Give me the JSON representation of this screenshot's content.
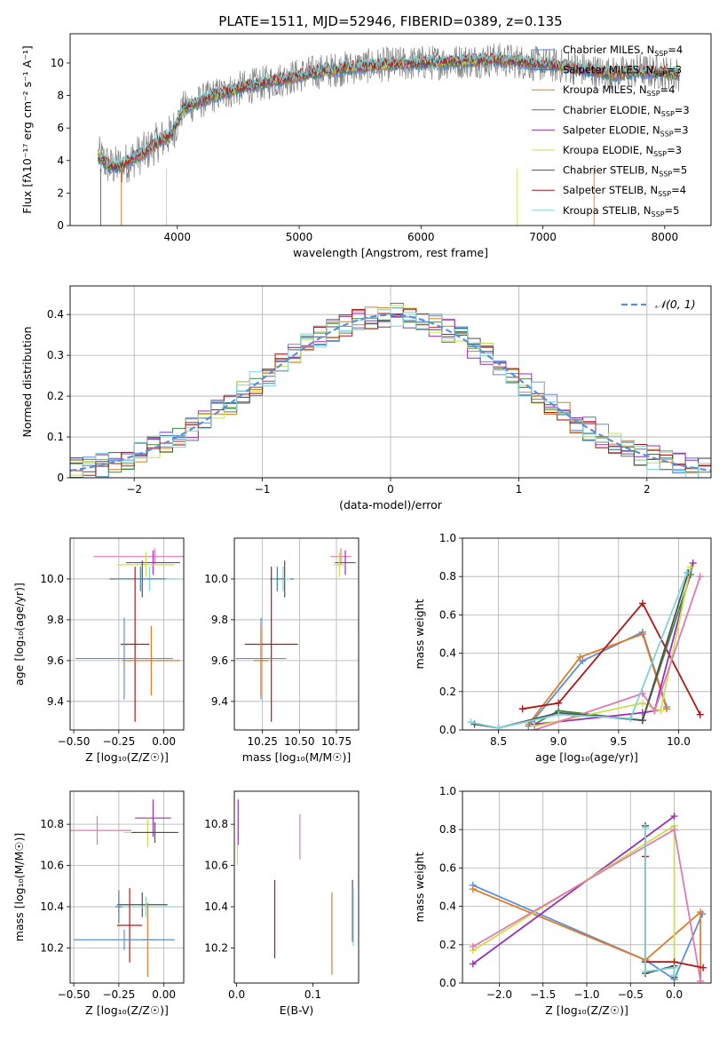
{
  "figure_title": "PLATE=1511, MJD=52946, FIBERID=0389, z=0.135",
  "model_colors": [
    "#e07a5f"
  ],
  "models": [
    {
      "name": "Chabrier MILES",
      "nssp": 4,
      "color": "#5b8fd8"
    },
    {
      "name": "Salpeter MILES",
      "nssp": 3,
      "color": "#3f7fb7"
    },
    {
      "name": "Kroupa MILES",
      "nssp": 4,
      "color": "#e07b28"
    },
    {
      "name": "Chabrier ELODIE",
      "nssp": 3,
      "color": "#3e8a3e"
    },
    {
      "name": "Salpeter ELODIE",
      "nssp": 3,
      "color": "#9a2fb8"
    },
    {
      "name": "Kroupa ELODIE",
      "nssp": 3,
      "color": "#c8e04a"
    },
    {
      "name": "Chabrier STELIB",
      "nssp": 5,
      "color": "#505050"
    },
    {
      "name": "Salpeter STELIB",
      "nssp": 4,
      "color": "#b01818"
    },
    {
      "name": "Kroupa STELIB",
      "nssp": 5,
      "color": "#7fd4d8"
    }
  ],
  "chart_data": [
    {
      "id": "spectrum",
      "type": "line",
      "xlabel": "wavelength [Angstrom, rest frame]",
      "ylabel": "Flux [fλ10⁻¹⁷ erg cm⁻² s⁻¹ A⁻¹]",
      "xlim": [
        3120,
        8380
      ],
      "ylim": [
        0,
        11.8
      ],
      "xticks": [
        4000,
        5000,
        6000,
        7000,
        8000
      ],
      "yticks": [
        0,
        2,
        4,
        6,
        8,
        10
      ],
      "grid": false,
      "legend": "top-right",
      "continuum": {
        "x": [
          3350,
          3450,
          3550,
          3650,
          3750,
          3850,
          3950,
          4050,
          4150,
          4300,
          4500,
          4800,
          5100,
          5400,
          5700,
          6000,
          6300,
          6600,
          6800,
          7000,
          7200,
          7400,
          7600,
          7800,
          8000,
          8150
        ],
        "y": [
          4.3,
          3.6,
          3.7,
          4.2,
          4.6,
          5.2,
          5.6,
          7.2,
          7.5,
          8.0,
          8.4,
          8.9,
          9.4,
          9.7,
          9.9,
          10.0,
          10.1,
          10.2,
          10.1,
          9.9,
          9.8,
          9.5,
          9.3,
          9.5,
          9.4,
          9.3
        ]
      },
      "data_x_range": [
        3350,
        8120
      ],
      "models_x_range": [
        3350,
        8120
      ]
    },
    {
      "id": "residuals",
      "type": "line",
      "xlabel": "(data-model)/error",
      "ylabel": "Normed distribution",
      "xlim": [
        -2.5,
        2.5
      ],
      "ylim": [
        0,
        0.47
      ],
      "xticks": [
        -2,
        -1,
        0,
        1,
        2
      ],
      "yticks": [
        0.0,
        0.1,
        0.2,
        0.3,
        0.4
      ],
      "grid": true,
      "legend": "top-right",
      "legend_label": "𝒩(0, 1)",
      "gaussian": {
        "mu": 0,
        "sigma": 1,
        "color": "#5b8fd8"
      }
    },
    {
      "id": "age_vs_Z",
      "type": "scatter",
      "xlabel": "Z [log₁₀(Z/Z☉)]",
      "ylabel": "age  [log₁₀(age/yr)]",
      "xlim": [
        -0.52,
        0.11
      ],
      "ylim": [
        9.26,
        10.2
      ],
      "xticks": [
        -0.5,
        -0.25,
        0.0
      ],
      "xtick_labels": [
        "−0.50",
        "−0.25",
        "0.00"
      ],
      "yticks": [
        9.4,
        9.6,
        9.8,
        10.0
      ],
      "yticklabels": [
        "9.4",
        "9.6",
        "9.8",
        "10.0"
      ],
      "grid": true,
      "points": [
        {
          "x": -0.05,
          "y": 10.11,
          "xerr": 0.34,
          "yerr": 0.04,
          "color": "#e07ab5"
        },
        {
          "x": -0.06,
          "y": 10.08,
          "xerr": 0.15,
          "yerr": 0.06,
          "color": "#9a2fb8"
        },
        {
          "x": -0.1,
          "y": 10.07,
          "xerr": 0.16,
          "yerr": 0.06,
          "color": "#c8e04a"
        },
        {
          "x": -0.12,
          "y": 10.0,
          "xerr": 0.18,
          "yerr": 0.09,
          "color": "#505050"
        },
        {
          "x": -0.08,
          "y": 10.0,
          "xerr": 0.18,
          "yerr": 0.06,
          "color": "#7fd4d8"
        },
        {
          "x": -0.13,
          "y": 10.0,
          "xerr": 0.14,
          "yerr": 0.06,
          "color": "#3f7fb7"
        },
        {
          "x": -0.16,
          "y": 9.68,
          "xerr": 0.08,
          "yerr": 0.38,
          "color": "#b01818"
        },
        {
          "x": -0.22,
          "y": 9.61,
          "xerr": 0.27,
          "yerr": 0.2,
          "color": "#5b8fd8"
        },
        {
          "x": -0.07,
          "y": 9.6,
          "xerr": 0.16,
          "yerr": 0.17,
          "color": "#e07b28"
        }
      ]
    },
    {
      "id": "age_vs_mass",
      "type": "scatter",
      "xlabel": "mass [log₁₀(M/M☉)]",
      "ylabel": "",
      "xlim": [
        10.06,
        10.9
      ],
      "ylim": [
        9.26,
        10.2
      ],
      "xticks": [
        10.25,
        10.5,
        10.75
      ],
      "xtick_labels": [
        "10.25",
        "10.50",
        "10.75"
      ],
      "yticks": [
        9.4,
        9.6,
        9.8,
        10.0
      ],
      "yticklabels": [
        "9.4",
        "9.6",
        "9.8",
        "10.0"
      ],
      "grid": true,
      "points": [
        {
          "x": 10.78,
          "y": 10.11,
          "xerr": 0.07,
          "yerr": 0.04,
          "color": "#e07ab5"
        },
        {
          "x": 10.81,
          "y": 10.08,
          "xerr": 0.07,
          "yerr": 0.06,
          "color": "#9a2fb8"
        },
        {
          "x": 10.77,
          "y": 10.07,
          "xerr": 0.04,
          "yerr": 0.06,
          "color": "#c8e04a"
        },
        {
          "x": 10.4,
          "y": 10.0,
          "xerr": 0.06,
          "yerr": 0.09,
          "color": "#505050"
        },
        {
          "x": 10.39,
          "y": 10.0,
          "xerr": 0.05,
          "yerr": 0.06,
          "color": "#7fd4d8"
        },
        {
          "x": 10.35,
          "y": 10.0,
          "xerr": 0.05,
          "yerr": 0.06,
          "color": "#3f7fb7"
        },
        {
          "x": 10.31,
          "y": 9.68,
          "xerr": 0.18,
          "yerr": 0.38,
          "color": "#b01818"
        },
        {
          "x": 10.24,
          "y": 9.61,
          "xerr": 0.17,
          "yerr": 0.2,
          "color": "#5b8fd8"
        },
        {
          "x": 10.24,
          "y": 9.6,
          "xerr": 0.05,
          "yerr": 0.17,
          "color": "#e07b28"
        }
      ]
    },
    {
      "id": "mass_weight_vs_age",
      "type": "line",
      "xlabel": "age  [log₁₀(age/yr)]",
      "ylabel": "mass weight",
      "xlim": [
        8.2,
        10.27
      ],
      "ylim": [
        0,
        1.0
      ],
      "xticks": [
        8.5,
        9.0,
        9.5,
        10.0
      ],
      "xtick_labels": [
        "8.5",
        "9.0",
        "9.5",
        "10.0"
      ],
      "yticks": [
        0.0,
        0.2,
        0.4,
        0.6,
        0.8,
        1.0
      ],
      "yticklabels": [
        "0.0",
        "0.2",
        "0.4",
        "0.6",
        "0.8",
        "1.0"
      ],
      "grid": true,
      "series": [
        {
          "color": "#5b8fd8",
          "x": [
            8.75,
            9.2,
            9.7,
            9.9
          ],
          "y": [
            0.02,
            0.36,
            0.51,
            0.12
          ]
        },
        {
          "color": "#e07b28",
          "x": [
            8.75,
            9.18,
            9.7,
            9.9
          ],
          "y": [
            0.03,
            0.38,
            0.5,
            0.11
          ]
        },
        {
          "color": "#b01818",
          "x": [
            8.7,
            9.0,
            9.7,
            10.18
          ],
          "y": [
            0.11,
            0.14,
            0.66,
            0.08
          ]
        },
        {
          "color": "#3e8a3e",
          "x": [
            8.8,
            9.0,
            9.7,
            10.1
          ],
          "y": [
            0.03,
            0.1,
            0.05,
            0.81
          ]
        },
        {
          "color": "#9a2fb8",
          "x": [
            8.8,
            9.7,
            9.8,
            10.12
          ],
          "y": [
            0.03,
            0.09,
            0.1,
            0.87
          ]
        },
        {
          "color": "#c8e04a",
          "x": [
            8.8,
            9.7,
            9.85,
            10.1
          ],
          "y": [
            0.02,
            0.14,
            0.1,
            0.85
          ]
        },
        {
          "color": "#e07ab5",
          "x": [
            8.8,
            9.7,
            9.8,
            10.18
          ],
          "y": [
            0.0,
            0.19,
            0.1,
            0.8
          ]
        },
        {
          "color": "#505050",
          "x": [
            8.3,
            8.5,
            9.0,
            9.7,
            10.08
          ],
          "y": [
            0.03,
            0.01,
            0.09,
            0.05,
            0.82
          ]
        },
        {
          "color": "#7fd4d8",
          "x": [
            8.27,
            8.5,
            9.0,
            9.6,
            10.07
          ],
          "y": [
            0.04,
            0.01,
            0.08,
            0.06,
            0.82
          ]
        }
      ]
    },
    {
      "id": "mass_vs_Z",
      "type": "scatter",
      "xlabel": "Z [log₁₀(Z/Z☉)]",
      "ylabel": "mass [log₁₀(M/M☉)]",
      "xlim": [
        -0.52,
        0.11
      ],
      "ylim": [
        10.03,
        10.96
      ],
      "xticks": [
        -0.5,
        -0.25,
        0.0
      ],
      "xtick_labels": [
        "−0.50",
        "−0.25",
        "0.00"
      ],
      "yticks": [
        10.2,
        10.4,
        10.6,
        10.8
      ],
      "yticklabels": [
        "10.2",
        "10.4",
        "10.6",
        "10.8"
      ],
      "grid": true,
      "points": [
        {
          "x": -0.37,
          "y": 10.77,
          "xerr": 0.19,
          "yerr": 0.07,
          "color": "#e07ab5"
        },
        {
          "x": -0.06,
          "y": 10.83,
          "xerr": 0.1,
          "yerr": 0.09,
          "color": "#9a2fb8"
        },
        {
          "x": -0.09,
          "y": 10.76,
          "xerr": 0.13,
          "yerr": 0.07,
          "color": "#c8e04a"
        },
        {
          "x": -0.05,
          "y": 10.76,
          "xerr": 0.13,
          "yerr": 0.05,
          "color": "#505050"
        },
        {
          "x": -0.12,
          "y": 10.41,
          "xerr": 0.14,
          "yerr": 0.06,
          "color": "#505050"
        },
        {
          "x": -0.1,
          "y": 10.4,
          "xerr": 0.16,
          "yerr": 0.05,
          "color": "#7fd4d8"
        },
        {
          "x": -0.25,
          "y": 10.4,
          "xerr": 0.02,
          "yerr": 0.08,
          "color": "#3f7fb7"
        },
        {
          "x": -0.19,
          "y": 10.31,
          "xerr": 0.07,
          "yerr": 0.18,
          "color": "#b01818"
        },
        {
          "x": -0.09,
          "y": 10.24,
          "xerr": 0.03,
          "yerr": 0.18,
          "color": "#e07b28"
        },
        {
          "x": -0.22,
          "y": 10.24,
          "xerr": 0.28,
          "yerr": 0.05,
          "color": "#5b8fd8"
        }
      ]
    },
    {
      "id": "mass_vs_ebv",
      "type": "scatter",
      "xlabel": "E(B-V)",
      "ylabel": "",
      "xlim": [
        -0.003,
        0.16
      ],
      "ylim": [
        10.03,
        10.96
      ],
      "xticks": [
        0.0,
        0.1
      ],
      "xtick_labels": [
        "0.0",
        "0.1"
      ],
      "yticks": [
        10.2,
        10.4,
        10.6,
        10.8
      ],
      "yticklabels": [
        "10.2",
        "10.4",
        "10.6",
        "10.8"
      ],
      "grid": false,
      "points": [
        {
          "x": 0.002,
          "y": 10.81,
          "xerr": 0,
          "yerr": 0.11,
          "color": "#9a2fb8"
        },
        {
          "x": 0.001,
          "y": 10.7,
          "xerr": 0,
          "yerr": 0.1,
          "color": "#c8e04a"
        },
        {
          "x": 0.083,
          "y": 10.74,
          "xerr": 0,
          "yerr": 0.11,
          "color": "#e07ab5"
        },
        {
          "x": 0.05,
          "y": 10.34,
          "xerr": 0,
          "yerr": 0.19,
          "color": "#b01818"
        },
        {
          "x": 0.125,
          "y": 10.27,
          "xerr": 0,
          "yerr": 0.2,
          "color": "#e07b28"
        },
        {
          "x": 0.152,
          "y": 10.38,
          "xerr": 0,
          "yerr": 0.15,
          "color": "#505050"
        },
        {
          "x": 0.153,
          "y": 10.35,
          "xerr": 0,
          "yerr": 0.14,
          "color": "#7fd4d8"
        }
      ]
    },
    {
      "id": "mass_weight_vs_Z",
      "type": "line",
      "xlabel": "Z [log₁₀(Z/Z☉)]",
      "ylabel": "mass weight",
      "xlim": [
        -2.42,
        0.42
      ],
      "ylim": [
        0,
        1.0
      ],
      "xticks": [
        -2.0,
        -1.5,
        -1.0,
        -0.5,
        0.0
      ],
      "xtick_labels": [
        "−2.0",
        "−1.5",
        "−1.0",
        "−0.5",
        "0.0"
      ],
      "yticks": [
        0.0,
        0.2,
        0.4,
        0.6,
        0.8,
        1.0
      ],
      "yticklabels": [
        "0.0",
        "0.2",
        "0.4",
        "0.6",
        "0.8",
        "1.0"
      ],
      "grid": true,
      "series": [
        {
          "color": "#5b8fd8",
          "x": [
            -2.3,
            -0.33,
            0.0,
            0.32
          ],
          "y": [
            0.51,
            0.12,
            0.02,
            0.36
          ]
        },
        {
          "color": "#e07b28",
          "x": [
            -2.3,
            -0.33,
            0.3,
            0.3
          ],
          "y": [
            0.49,
            0.12,
            0.37,
            0.01
          ]
        },
        {
          "color": "#9a2fb8",
          "x": [
            -2.3,
            0.0
          ],
          "y": [
            0.1,
            0.87
          ]
        },
        {
          "color": "#c8e04a",
          "x": [
            -2.3,
            0.0,
            0.0
          ],
          "y": [
            0.17,
            0.82,
            0.03
          ]
        },
        {
          "color": "#e07ab5",
          "x": [
            -2.3,
            0.0,
            0.3
          ],
          "y": [
            0.19,
            0.8,
            0.01
          ]
        },
        {
          "color": "#b01818",
          "x": [
            -0.33,
            -0.33,
            0.0,
            0.33
          ],
          "y": [
            0.66,
            0.11,
            0.11,
            0.08
          ]
        },
        {
          "color": "#505050",
          "x": [
            -0.33,
            -0.33,
            0.0,
            0.0
          ],
          "y": [
            0.82,
            0.05,
            0.09,
            0.03
          ]
        },
        {
          "color": "#7fd4d8",
          "x": [
            -0.33,
            -0.33,
            0.0,
            0.0
          ],
          "y": [
            0.81,
            0.06,
            0.08,
            0.04
          ]
        }
      ]
    }
  ]
}
